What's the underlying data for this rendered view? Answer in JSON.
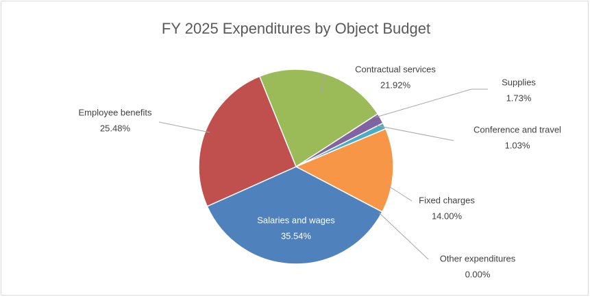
{
  "chart_data": {
    "type": "pie",
    "title": "FY 2025 Expenditures by Object Budget",
    "categories": [
      "Contractual services",
      "Supplies",
      "Conference and travel",
      "Fixed charges",
      "Other expenditures",
      "Salaries and wages",
      "Employee benefits"
    ],
    "values": [
      21.92,
      1.73,
      1.03,
      14.0,
      0.0,
      35.54,
      25.48
    ],
    "value_labels": [
      "21.92%",
      "1.73%",
      "1.03%",
      "14.00%",
      "0.00%",
      "35.54%",
      "25.48%"
    ],
    "colors": [
      "#9bbb59",
      "#8064a2",
      "#4bacc6",
      "#f79646",
      "#4f81bd",
      "#4f81bd",
      "#c0504d"
    ]
  }
}
